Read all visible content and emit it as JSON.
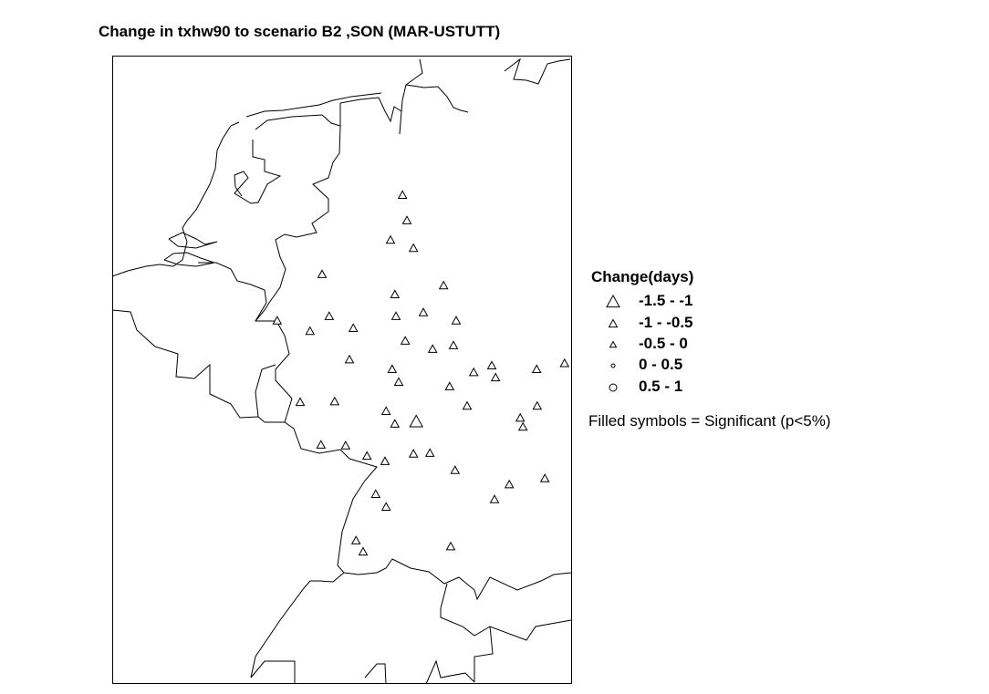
{
  "title": "Change in txhw90 to scenario B2 ,SON (MAR-USTUTT)",
  "legend": {
    "title": "Change(days)",
    "classes": [
      {
        "label": "-1.5 - -1",
        "symbol": "triangle",
        "size": "large"
      },
      {
        "label": "-1 - -0.5",
        "symbol": "triangle",
        "size": "medium"
      },
      {
        "label": "-0.5 - 0",
        "symbol": "triangle",
        "size": "small"
      },
      {
        "label": "0 - 0.5",
        "symbol": "circle",
        "size": "small"
      },
      {
        "label": "0.5 - 1",
        "symbol": "circle",
        "size": "large"
      }
    ],
    "note": "Filled symbols = Significant (p<5%)"
  },
  "chart_data": {
    "type": "scatter",
    "title": "Change in txhw90 to scenario B2 ,SON (MAR-USTUTT)",
    "map_region": "Benelux / western Germany",
    "symbol_colors": {
      "outline": "#000000",
      "fill_significant": "#000000",
      "fill_not_significant": "#ffffff"
    },
    "stations": [
      {
        "lon": 8.67,
        "lat": 52.61,
        "class": "-1 - -0.5",
        "significant": false
      },
      {
        "lon": 8.75,
        "lat": 52.27,
        "class": "-1 - -0.5",
        "significant": false
      },
      {
        "lon": 8.45,
        "lat": 52.01,
        "class": "-1 - -0.5",
        "significant": false
      },
      {
        "lon": 8.87,
        "lat": 51.9,
        "class": "-1 - -0.5",
        "significant": false
      },
      {
        "lon": 7.2,
        "lat": 51.55,
        "class": "-1 - -0.5",
        "significant": false
      },
      {
        "lon": 9.42,
        "lat": 51.4,
        "class": "-1 - -0.5",
        "significant": false
      },
      {
        "lon": 8.53,
        "lat": 51.28,
        "class": "-1 - -0.5",
        "significant": false
      },
      {
        "lon": 6.38,
        "lat": 50.93,
        "class": "-1 - -0.5",
        "significant": false
      },
      {
        "lon": 7.33,
        "lat": 50.99,
        "class": "-1 - -0.5",
        "significant": false
      },
      {
        "lon": 8.55,
        "lat": 50.99,
        "class": "-1 - -0.5",
        "significant": false
      },
      {
        "lon": 9.05,
        "lat": 51.04,
        "class": "-1 - -0.5",
        "significant": false
      },
      {
        "lon": 9.65,
        "lat": 50.93,
        "class": "-1 - -0.5",
        "significant": false
      },
      {
        "lon": 6.98,
        "lat": 50.79,
        "class": "-1 - -0.5",
        "significant": false
      },
      {
        "lon": 7.77,
        "lat": 50.83,
        "class": "-1 - -0.5",
        "significant": false
      },
      {
        "lon": 8.72,
        "lat": 50.66,
        "class": "-1 - -0.5",
        "significant": false
      },
      {
        "lon": 9.22,
        "lat": 50.55,
        "class": "-1 - -0.5",
        "significant": false
      },
      {
        "lon": 9.6,
        "lat": 50.6,
        "class": "-1 - -0.5",
        "significant": false
      },
      {
        "lon": 7.7,
        "lat": 50.41,
        "class": "-1 - -0.5",
        "significant": false
      },
      {
        "lon": 8.48,
        "lat": 50.28,
        "class": "-1 - -0.5",
        "significant": false
      },
      {
        "lon": 9.97,
        "lat": 50.24,
        "class": "-1 - -0.5",
        "significant": false
      },
      {
        "lon": 10.3,
        "lat": 50.33,
        "class": "-1 - -0.5",
        "significant": false
      },
      {
        "lon": 10.37,
        "lat": 50.17,
        "class": "-1 - -0.5",
        "significant": false
      },
      {
        "lon": 11.12,
        "lat": 50.28,
        "class": "-1 - -0.5",
        "significant": false
      },
      {
        "lon": 11.63,
        "lat": 50.36,
        "class": "-1 - -0.5",
        "significant": false
      },
      {
        "lon": 8.6,
        "lat": 50.11,
        "class": "-1 - -0.5",
        "significant": false
      },
      {
        "lon": 9.53,
        "lat": 50.05,
        "class": "-1 - -0.5",
        "significant": false
      },
      {
        "lon": 6.8,
        "lat": 49.84,
        "class": "-1 - -0.5",
        "significant": false
      },
      {
        "lon": 7.43,
        "lat": 49.85,
        "class": "-1 - -0.5",
        "significant": false
      },
      {
        "lon": 8.37,
        "lat": 49.72,
        "class": "-1 - -0.5",
        "significant": false
      },
      {
        "lon": 9.85,
        "lat": 49.79,
        "class": "-1 - -0.5",
        "significant": false
      },
      {
        "lon": 11.13,
        "lat": 49.79,
        "class": "-1 - -0.5",
        "significant": false
      },
      {
        "lon": 8.92,
        "lat": 49.58,
        "class": "-1.5 - -1",
        "significant": false
      },
      {
        "lon": 8.53,
        "lat": 49.55,
        "class": "-1 - -0.5",
        "significant": false
      },
      {
        "lon": 10.82,
        "lat": 49.63,
        "class": "-1 - -0.5",
        "significant": false
      },
      {
        "lon": 10.87,
        "lat": 49.51,
        "class": "-1 - -0.5",
        "significant": false
      },
      {
        "lon": 7.18,
        "lat": 49.27,
        "class": "-1 - -0.5",
        "significant": false
      },
      {
        "lon": 7.63,
        "lat": 49.26,
        "class": "-1 - -0.5",
        "significant": false
      },
      {
        "lon": 8.02,
        "lat": 49.12,
        "class": "-1 - -0.5",
        "significant": false
      },
      {
        "lon": 8.35,
        "lat": 49.05,
        "class": "-1 - -0.5",
        "significant": false
      },
      {
        "lon": 8.87,
        "lat": 49.15,
        "class": "-1 - -0.5",
        "significant": false
      },
      {
        "lon": 9.17,
        "lat": 49.16,
        "class": "-1 - -0.5",
        "significant": false
      },
      {
        "lon": 9.63,
        "lat": 48.93,
        "class": "-1 - -0.5",
        "significant": false
      },
      {
        "lon": 11.27,
        "lat": 48.82,
        "class": "-1 - -0.5",
        "significant": false
      },
      {
        "lon": 10.62,
        "lat": 48.74,
        "class": "-1 - -0.5",
        "significant": false
      },
      {
        "lon": 10.35,
        "lat": 48.54,
        "class": "-1 - -0.5",
        "significant": false
      },
      {
        "lon": 8.18,
        "lat": 48.61,
        "class": "-1 - -0.5",
        "significant": false
      },
      {
        "lon": 8.37,
        "lat": 48.44,
        "class": "-1 - -0.5",
        "significant": false
      },
      {
        "lon": 7.82,
        "lat": 47.99,
        "class": "-1 - -0.5",
        "significant": false
      },
      {
        "lon": 7.95,
        "lat": 47.84,
        "class": "-1 - -0.5",
        "significant": false
      },
      {
        "lon": 9.55,
        "lat": 47.91,
        "class": "-1 - -0.5",
        "significant": false
      }
    ]
  }
}
